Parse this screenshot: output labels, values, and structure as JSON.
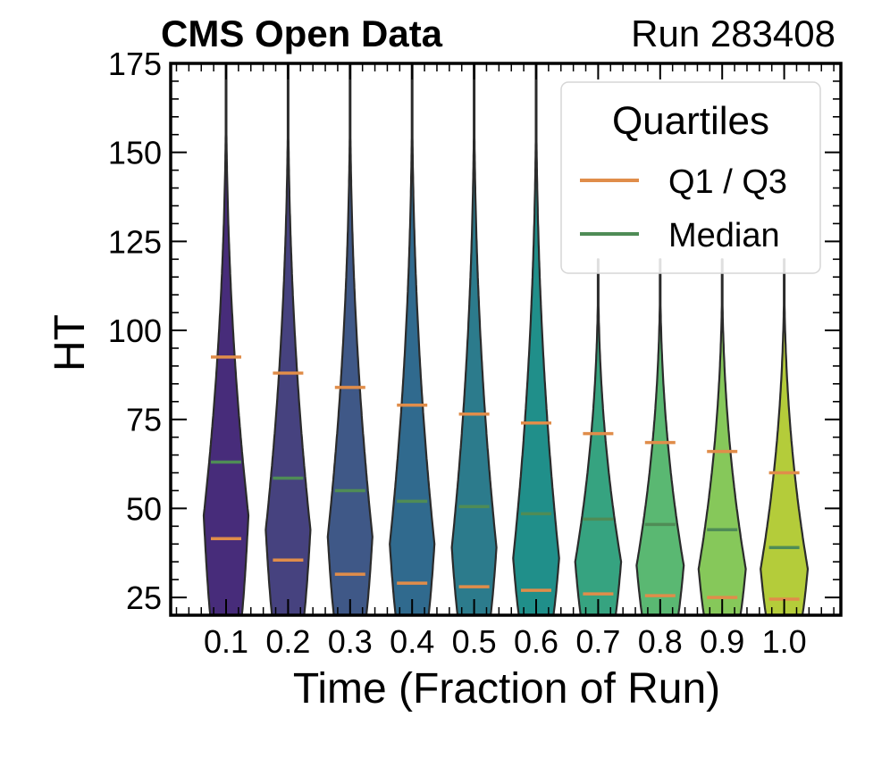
{
  "chart_data": {
    "type": "violin",
    "title": "CMS Open Data",
    "subtitle": "Run 283408",
    "xlabel": "Time (Fraction of Run)",
    "ylabel": "HT",
    "ylim": [
      20,
      175
    ],
    "yticks": [
      25,
      50,
      75,
      100,
      125,
      150,
      175
    ],
    "categories": [
      "0.1",
      "0.2",
      "0.3",
      "0.4",
      "0.5",
      "0.6",
      "0.7",
      "0.8",
      "0.9",
      "1.0"
    ],
    "q1": [
      41.5,
      35.5,
      31.5,
      29.0,
      28.0,
      27.0,
      26.0,
      25.5,
      25.0,
      24.5
    ],
    "median": [
      63.0,
      58.5,
      55.0,
      52.0,
      50.5,
      48.5,
      47.0,
      45.5,
      44.0,
      39.0
    ],
    "q3": [
      92.5,
      88.0,
      84.0,
      79.0,
      76.5,
      74.0,
      71.0,
      68.5,
      66.0,
      60.0
    ],
    "max_half_width": [
      0.36,
      0.36,
      0.36,
      0.36,
      0.36,
      0.37,
      0.37,
      0.38,
      0.38,
      0.38
    ],
    "widest_at": [
      48,
      44,
      42,
      40,
      39,
      36,
      35,
      34,
      33,
      33
    ],
    "top_extent": [
      175,
      175,
      175,
      175,
      175,
      175,
      120,
      120,
      120,
      120
    ],
    "colors": [
      "#472c7a",
      "#46427f",
      "#3f5887",
      "#306a8e",
      "#2c7b8c",
      "#208f8a",
      "#36a380",
      "#5ab872",
      "#86c85a",
      "#b4cc3a"
    ],
    "grid": false,
    "legend": {
      "title": "Quartiles",
      "position": "top-right",
      "entries": [
        {
          "label": "Q1 / Q3",
          "color": "#e08d4a"
        },
        {
          "label": "Median",
          "color": "#4f8c56"
        }
      ]
    }
  }
}
